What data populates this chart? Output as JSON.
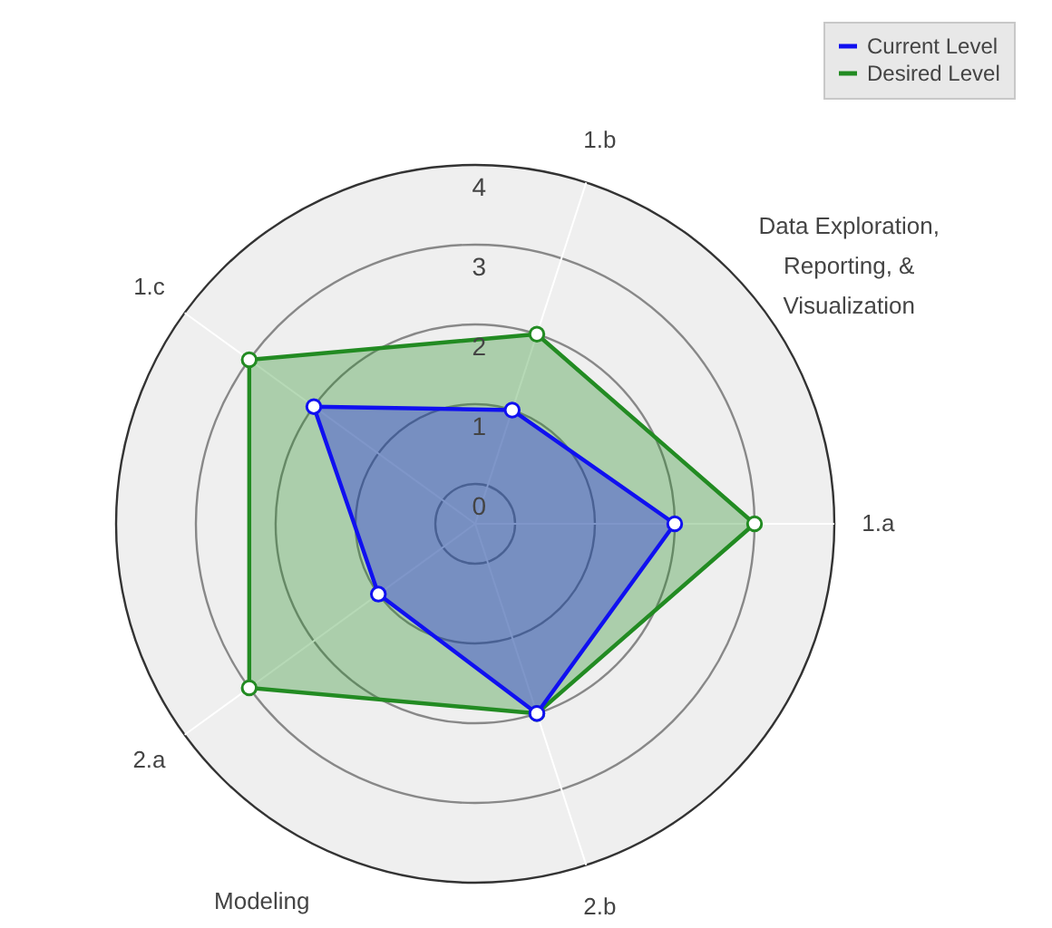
{
  "chart_data": {
    "type": "radar",
    "categories": [
      "1.b",
      "1.a",
      "2.b",
      "2.a",
      "1.c"
    ],
    "series": [
      {
        "name": "Current Level",
        "color": "#1010f0",
        "values": [
          1,
          2,
          2,
          1,
          2
        ]
      },
      {
        "name": "Desired Level",
        "color": "#228b22",
        "values": [
          2,
          3,
          2,
          3,
          3
        ]
      }
    ],
    "ylim": [
      -0.5,
      4
    ],
    "yticks": [
      0,
      1,
      2,
      3,
      4
    ],
    "marker": "circle",
    "legend": "top right",
    "annotations": [
      "Data Exploration,\nReporting, &\nVisualization",
      "Modeling"
    ]
  }
}
